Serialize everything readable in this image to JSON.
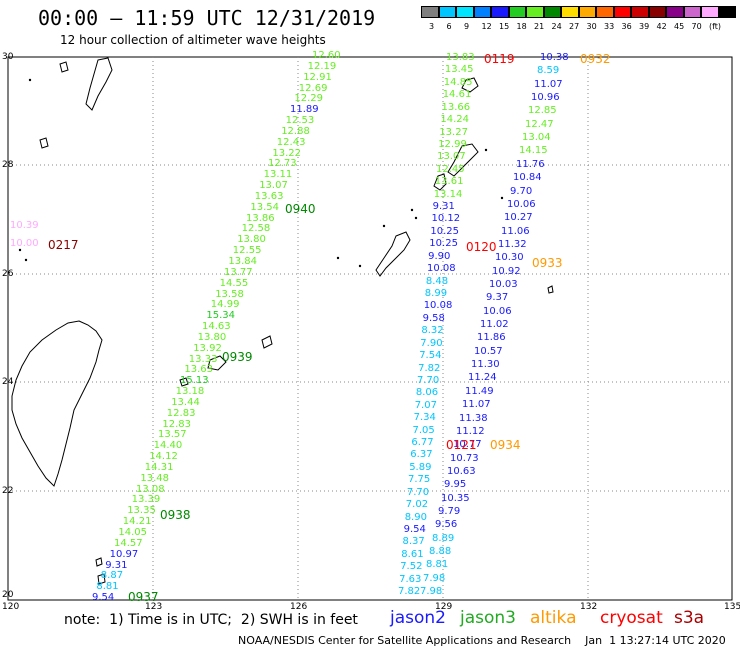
{
  "title": "00:00 – 11:59 UTC 12/31/2019",
  "subtitle": "12 hour collection of altimeter wave heights",
  "legend": {
    "colors": [
      "#7f7f7f",
      "#00c6ff",
      "#00e5ff",
      "#0080ff",
      "#1a1aff",
      "#22cc22",
      "#66ee22",
      "#008800",
      "#ffdd00",
      "#ffaa00",
      "#ff6600",
      "#ff0000",
      "#cc0000",
      "#880000",
      "#880088",
      "#cc66cc",
      "#ffaaff",
      "#000000"
    ],
    "labels": [
      "3",
      "6",
      "9",
      "12",
      "15",
      "18",
      "21",
      "24",
      "27",
      "30",
      "33",
      "36",
      "39",
      "42",
      "45",
      "70",
      "(ft)"
    ]
  },
  "axes": {
    "x_ticks": [
      "120",
      "123",
      "126",
      "129",
      "132",
      "135"
    ],
    "y_ticks": [
      "30",
      "28",
      "26",
      "24",
      "22",
      "20"
    ]
  },
  "footer": {
    "note": "note:  1) Time is in UTC;  2) SWH is in feet",
    "satellites": [
      {
        "name": "jason2",
        "color": "#1a1aff"
      },
      {
        "name": "jason3",
        "color": "#22aa22"
      },
      {
        "name": "altika",
        "color": "#ff9900"
      },
      {
        "name": "cryosat",
        "color": "#ff0000"
      },
      {
        "name": "s3a",
        "color": "#aa0000"
      }
    ],
    "credits": "NOAA/NESDIS Center for Satellite Applications and Research    Jan  1 13:27:14 UTC 2020"
  },
  "time_labels": [
    {
      "text": "0217",
      "color": "#880000"
    },
    {
      "text": "0940",
      "color": "#008800"
    },
    {
      "text": "0939",
      "color": "#008800"
    },
    {
      "text": "0938",
      "color": "#008800"
    },
    {
      "text": "0937",
      "color": "#008800"
    },
    {
      "text": "0119",
      "color": "#ff0000"
    },
    {
      "text": "0932",
      "color": "#ff9900"
    },
    {
      "text": "0120",
      "color": "#ff0000"
    },
    {
      "text": "0933",
      "color": "#ff9900"
    },
    {
      "text": "0121",
      "color": "#ff0000"
    },
    {
      "text": "0934",
      "color": "#ff9900"
    }
  ],
  "tracks": {
    "track_a": [
      {
        "v": "12.60",
        "c": "#66ee22"
      },
      {
        "v": "12.19",
        "c": "#66ee22"
      },
      {
        "v": "12.91",
        "c": "#66ee22"
      },
      {
        "v": "12.69",
        "c": "#66ee22"
      },
      {
        "v": "12.29",
        "c": "#66ee22"
      },
      {
        "v": "11.89",
        "c": "#1a1aff"
      },
      {
        "v": "12.53",
        "c": "#66ee22"
      },
      {
        "v": "12.88",
        "c": "#66ee22"
      },
      {
        "v": "12.43",
        "c": "#66ee22"
      },
      {
        "v": "13.22",
        "c": "#66ee22"
      },
      {
        "v": "12.73",
        "c": "#66ee22"
      },
      {
        "v": "13.11",
        "c": "#66ee22"
      },
      {
        "v": "13.07",
        "c": "#66ee22"
      },
      {
        "v": "13.63",
        "c": "#66ee22"
      },
      {
        "v": "13.54",
        "c": "#66ee22"
      },
      {
        "v": "13.86",
        "c": "#66ee22"
      },
      {
        "v": "12.58",
        "c": "#66ee22"
      },
      {
        "v": "13.80",
        "c": "#66ee22"
      },
      {
        "v": "12.55",
        "c": "#66ee22"
      },
      {
        "v": "13.84",
        "c": "#66ee22"
      },
      {
        "v": "13.77",
        "c": "#66ee22"
      },
      {
        "v": "14.55",
        "c": "#66ee22"
      },
      {
        "v": "13.58",
        "c": "#66ee22"
      },
      {
        "v": "14.99",
        "c": "#66ee22"
      },
      {
        "v": "15.34",
        "c": "#22cc22"
      },
      {
        "v": "14.63",
        "c": "#66ee22"
      },
      {
        "v": "13.80",
        "c": "#66ee22"
      },
      {
        "v": "13.92",
        "c": "#66ee22"
      },
      {
        "v": "13.33",
        "c": "#66ee22"
      },
      {
        "v": "13.63",
        "c": "#66ee22"
      },
      {
        "v": "15.13",
        "c": "#22cc22"
      },
      {
        "v": "13.18",
        "c": "#66ee22"
      },
      {
        "v": "13.44",
        "c": "#66ee22"
      },
      {
        "v": "12.83",
        "c": "#66ee22"
      },
      {
        "v": "12.83",
        "c": "#66ee22"
      },
      {
        "v": "13.57",
        "c": "#66ee22"
      },
      {
        "v": "14.40",
        "c": "#66ee22"
      },
      {
        "v": "14.12",
        "c": "#66ee22"
      },
      {
        "v": "14.31",
        "c": "#66ee22"
      },
      {
        "v": "13.48",
        "c": "#66ee22"
      },
      {
        "v": "13.08",
        "c": "#66ee22"
      },
      {
        "v": "13.39",
        "c": "#66ee22"
      },
      {
        "v": "13.35",
        "c": "#66ee22"
      },
      {
        "v": "14.21",
        "c": "#66ee22"
      },
      {
        "v": "14.05",
        "c": "#66ee22"
      },
      {
        "v": "14.57",
        "c": "#66ee22"
      },
      {
        "v": "10.97",
        "c": "#1a1aff"
      },
      {
        "v": "9.31",
        "c": "#1a1aff"
      },
      {
        "v": "8.87",
        "c": "#00c6ff"
      },
      {
        "v": "8.81",
        "c": "#00c6ff"
      },
      {
        "v": "9.54",
        "c": "#1a1aff"
      }
    ],
    "track_b": [
      {
        "v": "13.83",
        "c": "#66ee22"
      },
      {
        "v": "13.45",
        "c": "#66ee22"
      },
      {
        "v": "14.85",
        "c": "#66ee22"
      },
      {
        "v": "14.61",
        "c": "#66ee22"
      },
      {
        "v": "13.66",
        "c": "#66ee22"
      },
      {
        "v": "14.24",
        "c": "#66ee22"
      },
      {
        "v": "13.27",
        "c": "#66ee22"
      },
      {
        "v": "12.99",
        "c": "#66ee22"
      },
      {
        "v": "13.07",
        "c": "#66ee22"
      },
      {
        "v": "12.45",
        "c": "#66ee22"
      },
      {
        "v": "13.61",
        "c": "#66ee22"
      },
      {
        "v": "13.14",
        "c": "#66ee22"
      },
      {
        "v": "9.31",
        "c": "#1a1aff"
      },
      {
        "v": "10.12",
        "c": "#1a1aff"
      },
      {
        "v": "10.25",
        "c": "#1a1aff"
      },
      {
        "v": "10.25",
        "c": "#1a1aff"
      },
      {
        "v": "9.90",
        "c": "#1a1aff"
      },
      {
        "v": "10.08",
        "c": "#1a1aff"
      },
      {
        "v": "8.48",
        "c": "#00c6ff"
      },
      {
        "v": "8.99",
        "c": "#00c6ff"
      },
      {
        "v": "10.08",
        "c": "#1a1aff"
      },
      {
        "v": "9.58",
        "c": "#1a1aff"
      },
      {
        "v": "8.32",
        "c": "#00c6ff"
      },
      {
        "v": "7.90",
        "c": "#00c6ff"
      },
      {
        "v": "7.54",
        "c": "#00c6ff"
      },
      {
        "v": "7.82",
        "c": "#00c6ff"
      },
      {
        "v": "7.70",
        "c": "#00c6ff"
      },
      {
        "v": "8.06",
        "c": "#00c6ff"
      },
      {
        "v": "7.07",
        "c": "#00c6ff"
      },
      {
        "v": "7.34",
        "c": "#00c6ff"
      },
      {
        "v": "7.05",
        "c": "#00c6ff"
      },
      {
        "v": "6.77",
        "c": "#00c6ff"
      },
      {
        "v": "6.37",
        "c": "#00c6ff"
      },
      {
        "v": "5.89",
        "c": "#00c6ff"
      },
      {
        "v": "7.75",
        "c": "#00c6ff"
      },
      {
        "v": "7.70",
        "c": "#00c6ff"
      },
      {
        "v": "7.02",
        "c": "#00c6ff"
      },
      {
        "v": "8.90",
        "c": "#00c6ff"
      },
      {
        "v": "9.54",
        "c": "#1a1aff"
      },
      {
        "v": "8.37",
        "c": "#00c6ff"
      },
      {
        "v": "8.61",
        "c": "#00c6ff"
      },
      {
        "v": "7.52",
        "c": "#00c6ff"
      },
      {
        "v": "7.63",
        "c": "#00c6ff"
      },
      {
        "v": "7.82",
        "c": "#00c6ff"
      }
    ],
    "track_c": [
      {
        "v": "10.38",
        "c": "#1a1aff"
      },
      {
        "v": "8.59",
        "c": "#00c6ff"
      },
      {
        "v": "11.07",
        "c": "#1a1aff"
      },
      {
        "v": "10.96",
        "c": "#1a1aff"
      },
      {
        "v": "12.85",
        "c": "#66ee22"
      },
      {
        "v": "12.47",
        "c": "#66ee22"
      },
      {
        "v": "13.04",
        "c": "#66ee22"
      },
      {
        "v": "14.15",
        "c": "#66ee22"
      },
      {
        "v": "11.76",
        "c": "#1a1aff"
      },
      {
        "v": "10.84",
        "c": "#1a1aff"
      },
      {
        "v": "9.70",
        "c": "#1a1aff"
      },
      {
        "v": "10.06",
        "c": "#1a1aff"
      },
      {
        "v": "10.27",
        "c": "#1a1aff"
      },
      {
        "v": "11.06",
        "c": "#1a1aff"
      },
      {
        "v": "11.32",
        "c": "#1a1aff"
      },
      {
        "v": "10.30",
        "c": "#1a1aff"
      },
      {
        "v": "10.92",
        "c": "#1a1aff"
      },
      {
        "v": "10.03",
        "c": "#1a1aff"
      },
      {
        "v": "9.37",
        "c": "#1a1aff"
      },
      {
        "v": "10.06",
        "c": "#1a1aff"
      },
      {
        "v": "11.02",
        "c": "#1a1aff"
      },
      {
        "v": "11.86",
        "c": "#1a1aff"
      },
      {
        "v": "10.57",
        "c": "#1a1aff"
      },
      {
        "v": "11.30",
        "c": "#1a1aff"
      },
      {
        "v": "11.24",
        "c": "#1a1aff"
      },
      {
        "v": "11.49",
        "c": "#1a1aff"
      },
      {
        "v": "11.07",
        "c": "#1a1aff"
      },
      {
        "v": "11.38",
        "c": "#1a1aff"
      },
      {
        "v": "11.12",
        "c": "#1a1aff"
      },
      {
        "v": "10.77",
        "c": "#1a1aff"
      },
      {
        "v": "10.73",
        "c": "#1a1aff"
      },
      {
        "v": "10.63",
        "c": "#1a1aff"
      },
      {
        "v": "9.95",
        "c": "#1a1aff"
      },
      {
        "v": "10.35",
        "c": "#1a1aff"
      },
      {
        "v": "9.79",
        "c": "#1a1aff"
      },
      {
        "v": "9.56",
        "c": "#1a1aff"
      },
      {
        "v": "8.89",
        "c": "#00c6ff"
      },
      {
        "v": "8.88",
        "c": "#00c6ff"
      },
      {
        "v": "8.81",
        "c": "#00c6ff"
      },
      {
        "v": "7.98",
        "c": "#00c6ff"
      },
      {
        "v": "7.98",
        "c": "#00c6ff"
      }
    ],
    "track_d": [
      {
        "v": "10.39",
        "c": "#ffaaff"
      },
      {
        "v": "10.00",
        "c": "#ffaaff"
      }
    ]
  }
}
